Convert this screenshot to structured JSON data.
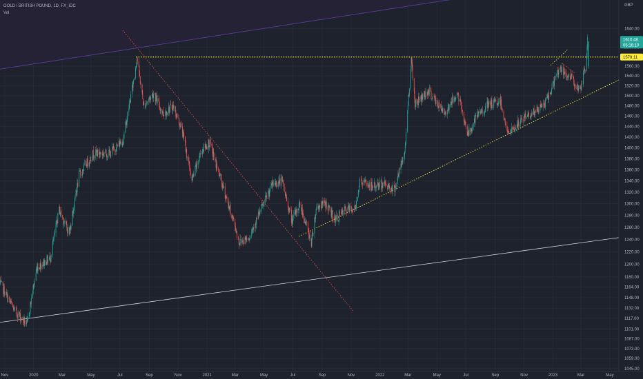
{
  "legend": {
    "symbol_line": "GOLD / BRITISH POUND, 1D, FX_IDC",
    "volume_label": "Vol"
  },
  "colors": {
    "background": "#1e222d",
    "up": "#26a69a",
    "down": "#ef5350",
    "grid": "#2a2e39",
    "axis_text": "#b2b5be",
    "resistance_line": "#ffeb3b",
    "support_line": "#ffeb3b",
    "downtrend_line": "#ef5350",
    "lower_channel_line": "#d1d4dc",
    "upper_channel_line": "#5b3fa0",
    "last_price_badge": "#26a69a",
    "level_badge": "#ffeb3b"
  },
  "price_badges": {
    "last_price": "1610.48",
    "countdown": "05:16:10",
    "level": "1579.11"
  },
  "chart_data": {
    "type": "candlestick",
    "title": "GOLD / BRITISH POUND, 1D, FX_IDC",
    "currency_label": "GBP",
    "y_scale": "log",
    "ylim": [
      1041,
      1700
    ],
    "y_ticks": [
      "1640.00",
      "1600.00",
      "1580.00",
      "1560.00",
      "1540.00",
      "1520.00",
      "1500.00",
      "1480.00",
      "1460.00",
      "1440.00",
      "1420.00",
      "1400.00",
      "1380.00",
      "1360.00",
      "1340.00",
      "1320.00",
      "1300.00",
      "1280.00",
      "1260.00",
      "1240.00",
      "1220.00",
      "1200.00",
      "1180.00",
      "1164.00",
      "1148.00",
      "1132.00",
      "1117.00",
      "1101.00",
      "1087.00",
      "1073.00",
      "1059.00",
      "1045.00"
    ],
    "x_ticks": [
      "Nov",
      "2020",
      "Mar",
      "May",
      "Jul",
      "Sep",
      "Nov",
      "2021",
      "Mar",
      "May",
      "Jul",
      "Sep",
      "Nov",
      "2022",
      "Mar",
      "May",
      "Jul",
      "Sep",
      "Nov",
      "2023",
      "Mar",
      "May"
    ],
    "x_range": [
      "2019-10-22",
      "2023-05-20"
    ],
    "grid": true,
    "anchor_prices": [
      [
        "2019-10-22",
        1170
      ],
      [
        "2019-11-20",
        1130
      ],
      [
        "2019-12-18",
        1108
      ],
      [
        "2020-01-08",
        1195
      ],
      [
        "2020-02-05",
        1210
      ],
      [
        "2020-02-24",
        1290
      ],
      [
        "2020-03-16",
        1250
      ],
      [
        "2020-04-06",
        1350
      ],
      [
        "2020-05-06",
        1390
      ],
      [
        "2020-06-10",
        1390
      ],
      [
        "2020-07-08",
        1415
      ],
      [
        "2020-07-28",
        1520
      ],
      [
        "2020-08-06",
        1579
      ],
      [
        "2020-08-20",
        1480
      ],
      [
        "2020-09-10",
        1505
      ],
      [
        "2020-09-30",
        1465
      ],
      [
        "2020-10-21",
        1480
      ],
      [
        "2020-11-09",
        1435
      ],
      [
        "2020-11-30",
        1340
      ],
      [
        "2020-12-20",
        1395
      ],
      [
        "2021-01-06",
        1410
      ],
      [
        "2021-02-03",
        1330
      ],
      [
        "2021-02-26",
        1270
      ],
      [
        "2021-03-10",
        1235
      ],
      [
        "2021-03-31",
        1245
      ],
      [
        "2021-04-22",
        1285
      ],
      [
        "2021-05-20",
        1335
      ],
      [
        "2021-06-08",
        1340
      ],
      [
        "2021-06-29",
        1270
      ],
      [
        "2021-07-16",
        1300
      ],
      [
        "2021-08-09",
        1235
      ],
      [
        "2021-08-20",
        1295
      ],
      [
        "2021-09-08",
        1300
      ],
      [
        "2021-09-29",
        1272
      ],
      [
        "2021-10-20",
        1290
      ],
      [
        "2021-11-10",
        1292
      ],
      [
        "2021-11-19",
        1340
      ],
      [
        "2021-12-15",
        1330
      ],
      [
        "2022-01-12",
        1335
      ],
      [
        "2022-01-31",
        1325
      ],
      [
        "2022-02-22",
        1390
      ],
      [
        "2022-03-08",
        1575
      ],
      [
        "2022-03-16",
        1485
      ],
      [
        "2022-04-13",
        1510
      ],
      [
        "2022-05-16",
        1465
      ],
      [
        "2022-06-13",
        1505
      ],
      [
        "2022-07-06",
        1425
      ],
      [
        "2022-07-25",
        1460
      ],
      [
        "2022-08-15",
        1480
      ],
      [
        "2022-09-12",
        1490
      ],
      [
        "2022-09-28",
        1425
      ],
      [
        "2022-10-19",
        1445
      ],
      [
        "2022-11-07",
        1462
      ],
      [
        "2022-11-28",
        1470
      ],
      [
        "2022-12-19",
        1490
      ],
      [
        "2023-01-16",
        1560
      ],
      [
        "2023-01-25",
        1540
      ],
      [
        "2023-02-08",
        1540
      ],
      [
        "2023-02-27",
        1507
      ],
      [
        "2023-03-10",
        1555
      ],
      [
        "2023-03-15",
        1612
      ]
    ],
    "drawings": [
      {
        "name": "resistance-level",
        "style": "dotted",
        "price": 1579.11,
        "from": "2020-08-04"
      },
      {
        "name": "downtrend-line",
        "style": "dotted",
        "from": [
          "2020-07-07",
          1636
        ],
        "to": [
          "2021-11-05",
          1128
        ]
      },
      {
        "name": "rising-support-line",
        "style": "dotted",
        "from": [
          "2021-07-14",
          1245
        ],
        "to": [
          "2023-05-20",
          1532
        ]
      },
      {
        "name": "lower-channel-line",
        "style": "solid",
        "from": [
          "2019-10-22",
          1111
        ],
        "to": [
          "2023-05-20",
          1243
        ]
      },
      {
        "name": "upper-channel-line",
        "style": "solid",
        "from": [
          "2019-10-22",
          1554
        ],
        "to": [
          "2022-07-05",
          1710
        ]
      },
      {
        "name": "upper-dotted-segment",
        "style": "dotted",
        "from": [
          "2022-12-27",
          1562
        ],
        "to": [
          "2023-02-01",
          1595
        ]
      },
      {
        "name": "short-decline-segment",
        "style": "dotted",
        "from": [
          "2023-01-20",
          1566
        ],
        "to": [
          "2023-02-16",
          1546
        ]
      }
    ]
  }
}
